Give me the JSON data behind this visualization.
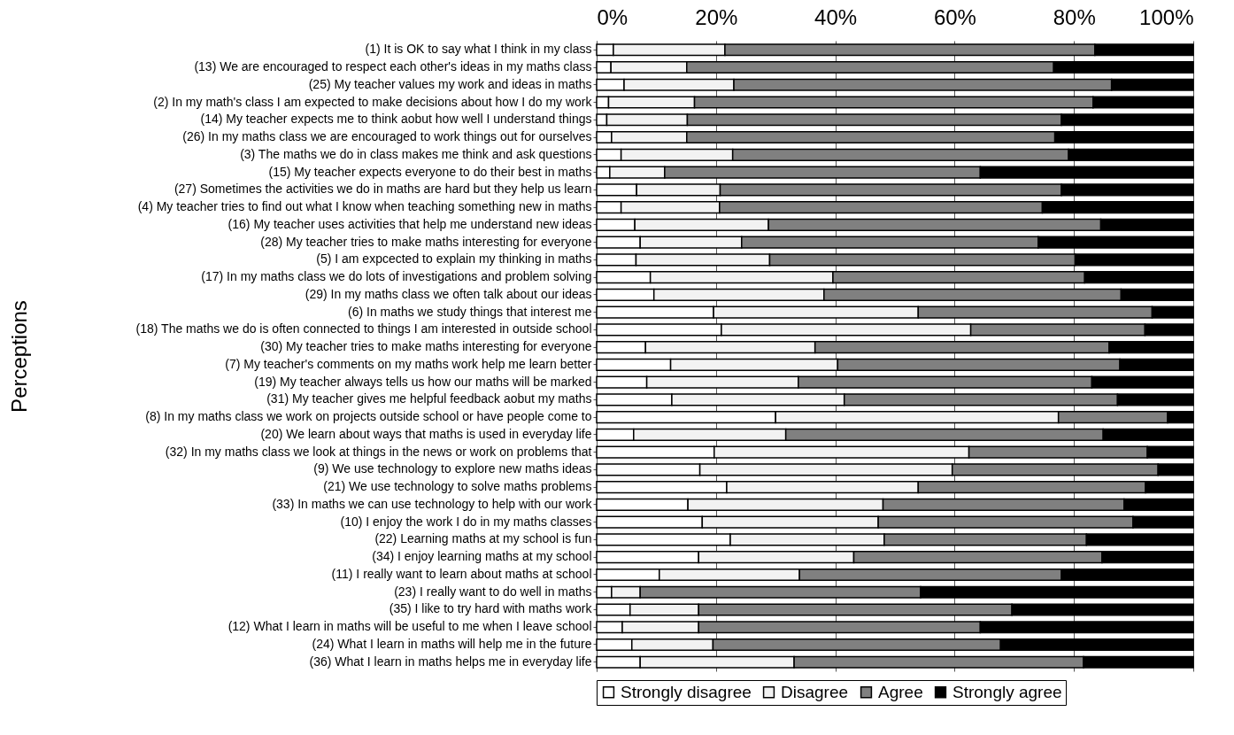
{
  "chart_data": {
    "type": "bar",
    "orientation": "horizontal",
    "stacked": true,
    "ylabel": "Perceptions",
    "categories": [
      "(1) It is OK to say what I think in my class",
      "(13) We are encouraged to respect each other's ideas in my maths class",
      "(25) My teacher values my work and ideas in maths",
      "(2) In my math's class I am expected to make decisions about how I do my work",
      "(14) My teacher expects me to think aobut how well I understand things",
      "(26) In my maths class we are encouraged to work things out for ourselves",
      "(3) The maths we do in class makes me think and ask questions",
      "(15) My teacher expects everyone to do their best in maths",
      "(27) Sometimes the activities we do in maths are hard but they help us learn",
      "(4) My teacher tries to find out what I know when teaching something new in maths",
      "(16) My teacher uses activities that help me understand new ideas",
      "(28) My teacher tries to make maths interesting for everyone",
      "(5) I am expcected to explain my thinking in maths",
      "(17) In my maths class we do lots of investigations and problem solving",
      "(29) In my maths class we often talk about our ideas",
      "(6) In maths we study things that interest me",
      "(18) The maths we do is often connected to things I am interested in outside school",
      "(30) My teacher tries to make maths interesting for everyone",
      "(7) My teacher's comments on my maths work help me learn better",
      "(19) My teacher always tells us how our maths will be marked",
      "(31) My teacher gives me helpful feedback aobut my maths",
      "(8) In my maths class we work on projects outside school or have people come to",
      "(20) We learn about ways that maths is used in everyday life",
      "(32) In my maths class we look at things in the news or work on problems that",
      "(9) We use technology to explore new maths ideas",
      "(21) We use technology to solve maths problems",
      "(33) In maths we can use technology to help with our work",
      "(10) I enjoy the work I do in my maths classes",
      "(22) Learning maths at my school is fun",
      "(34) I enjoy learning maths at my school",
      "(11) I really want to learn about maths at school",
      "(23) I really want to do well in maths",
      "(35) I like to try hard with maths work",
      "(12) What I learn in maths will be useful to me when I leave school",
      "(24) What I learn in maths will help me in the future",
      "(36) What I learn in maths helps me in everyday life"
    ],
    "series": [
      {
        "name": "Strongly disagree",
        "color": "#ffffff",
        "values": [
          2.8,
          2.4,
          4.6,
          2.0,
          1.7,
          2.5,
          4.1,
          2.2,
          6.7,
          4.1,
          6.4,
          7.3,
          6.6,
          9.0,
          9.6,
          19.6,
          20.9,
          8.2,
          12.4,
          8.4,
          12.6,
          30.0,
          6.2,
          19.7,
          17.3,
          21.8,
          15.3,
          17.7,
          22.4,
          17.1,
          10.5,
          2.5,
          5.6,
          4.3,
          5.9,
          7.3
        ]
      },
      {
        "name": "Disagree",
        "color": "#f2f2f2",
        "values": [
          18.7,
          12.7,
          18.4,
          14.4,
          13.5,
          12.6,
          18.7,
          9.2,
          14.0,
          16.5,
          22.4,
          17.0,
          22.4,
          30.6,
          28.5,
          34.3,
          41.8,
          28.4,
          28.0,
          25.4,
          28.9,
          47.4,
          25.5,
          42.7,
          42.3,
          32.1,
          32.7,
          29.5,
          25.8,
          26.0,
          23.5,
          4.8,
          11.5,
          12.8,
          13.6,
          25.8
        ]
      },
      {
        "name": "Agree",
        "color": "#808080",
        "values": [
          62.0,
          61.5,
          63.3,
          66.8,
          62.7,
          61.7,
          56.3,
          52.9,
          57.2,
          54.1,
          55.7,
          49.7,
          51.2,
          42.2,
          49.8,
          39.2,
          29.2,
          49.3,
          47.3,
          49.2,
          45.8,
          18.3,
          53.2,
          29.9,
          34.5,
          38.1,
          40.4,
          42.7,
          33.9,
          41.6,
          43.9,
          47.0,
          52.5,
          47.2,
          48.2,
          48.5
        ]
      },
      {
        "name": "Strongly agree",
        "color": "#000000",
        "values": [
          16.5,
          23.4,
          13.7,
          16.8,
          22.1,
          23.2,
          20.9,
          35.7,
          22.1,
          25.3,
          15.5,
          26.0,
          19.8,
          18.2,
          12.1,
          6.9,
          8.1,
          14.1,
          12.3,
          17.0,
          12.7,
          4.3,
          15.1,
          7.7,
          5.9,
          8.0,
          11.6,
          10.1,
          17.9,
          15.3,
          22.1,
          45.7,
          30.4,
          35.7,
          32.3,
          18.4
        ]
      }
    ],
    "xlim": [
      0,
      100
    ],
    "xticks": [
      {
        "value": 0,
        "label": "0%"
      },
      {
        "value": 20,
        "label": "20%"
      },
      {
        "value": 40,
        "label": "40%"
      },
      {
        "value": 60,
        "label": "60%"
      },
      {
        "value": 80,
        "label": "80%"
      },
      {
        "value": 100,
        "label": "100%"
      }
    ],
    "grid": "x",
    "legend": "bottom"
  }
}
